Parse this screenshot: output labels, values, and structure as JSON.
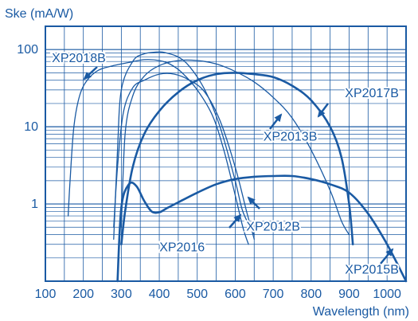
{
  "colors": {
    "ink": "#1a5aa3",
    "background": "#ffffff"
  },
  "chart_data": {
    "type": "line",
    "title": "",
    "ylabel": "Ske (mA/W)",
    "xlabel": "Wavelength (nm)",
    "x_scale": "linear",
    "y_scale": "log",
    "xlim": [
      100,
      1050
    ],
    "ylim": [
      0.1,
      200
    ],
    "x_ticks": [
      100,
      200,
      300,
      400,
      500,
      600,
      700,
      800,
      900,
      1000
    ],
    "y_ticks": [
      1,
      10,
      100
    ],
    "y_tick_labels": [
      "1",
      "10",
      "100"
    ],
    "grid": true,
    "legend": "none (curves labelled with callouts)",
    "series": [
      {
        "name": "XP2018B",
        "label_x": 188,
        "label_y": 79,
        "x": [
          160,
          165,
          175,
          190,
          210,
          240,
          280,
          320,
          360,
          400,
          430,
          460,
          500,
          540,
          570,
          600,
          620,
          635
        ],
        "y": [
          0.7,
          2,
          10,
          25,
          40,
          54,
          62,
          68,
          74,
          72,
          64,
          50,
          30,
          14,
          5,
          1.3,
          0.5,
          0.3
        ]
      },
      {
        "name": "XP2012B",
        "label_x": 700,
        "label_y": 0.52,
        "x": [
          280,
          290,
          305,
          330,
          360,
          400,
          440,
          480,
          520,
          560,
          600,
          630,
          650
        ],
        "y": [
          0.5,
          3,
          15,
          32,
          40,
          48,
          48,
          40,
          28,
          12,
          3,
          0.8,
          0.35
        ]
      },
      {
        "name": "XP2016",
        "label_x": 460,
        "label_y": 0.28,
        "x": [
          280,
          290,
          300,
          330,
          360,
          400,
          420,
          450,
          480,
          520,
          560,
          600,
          620,
          650
        ],
        "y": [
          0.35,
          5,
          30,
          70,
          88,
          93,
          90,
          80,
          60,
          30,
          10,
          2,
          0.8,
          0.4
        ]
      },
      {
        "name": "XP2013B",
        "label_x": 745,
        "label_y": 7.6,
        "x": [
          300,
          310,
          330,
          360,
          400,
          450,
          500,
          550,
          600,
          650,
          700,
          750,
          800,
          850,
          880,
          900
        ],
        "y": [
          0.5,
          8,
          25,
          45,
          62,
          72,
          72,
          65,
          52,
          38,
          24,
          13,
          5,
          1.5,
          0.6,
          0.4
        ]
      },
      {
        "name": "XP2017B",
        "label_x": 960,
        "label_y": 28,
        "x": [
          300,
          310,
          330,
          360,
          400,
          450,
          500,
          550,
          600,
          650,
          700,
          750,
          800,
          850,
          880,
          900,
          910
        ],
        "y": [
          0.3,
          0.8,
          3,
          8,
          16,
          28,
          40,
          48,
          50,
          48,
          44,
          34,
          22,
          10,
          4,
          1,
          0.3
        ]
      },
      {
        "name": "XP2015B",
        "label_x": 960,
        "label_y": 0.145,
        "x": [
          290,
          300,
          320,
          340,
          360,
          380,
          400,
          420,
          450,
          500,
          550,
          600,
          650,
          700,
          750,
          800,
          850,
          900,
          950,
          1000,
          1050
        ],
        "y": [
          0.1,
          0.9,
          1.8,
          1.7,
          1.1,
          0.8,
          0.78,
          0.88,
          1.05,
          1.4,
          1.8,
          2.1,
          2.25,
          2.3,
          2.3,
          2.1,
          1.8,
          1.4,
          0.75,
          0.3,
          0.1
        ]
      }
    ]
  }
}
